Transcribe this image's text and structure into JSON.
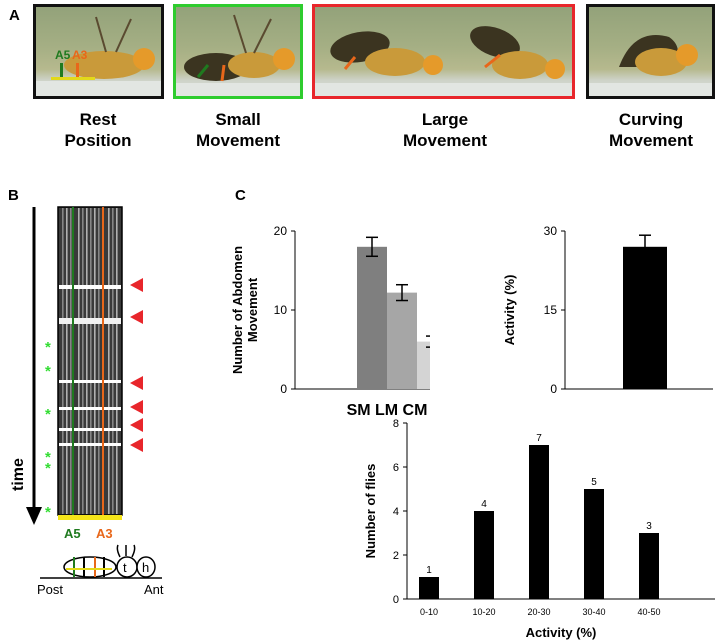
{
  "panels": {
    "a": "A",
    "b": "B",
    "c": "C"
  },
  "photo_labels": {
    "a5": "A5",
    "a3": "A3"
  },
  "captions": [
    {
      "line1": "Rest",
      "line2": "Position"
    },
    {
      "line1": "Small",
      "line2": "Movement"
    },
    {
      "line1": "Large",
      "line2": "Movement"
    },
    {
      "line1": "Curving",
      "line2": "Movement"
    }
  ],
  "colors": {
    "small": "#2ecc2e",
    "large": "#e8262b",
    "curving": "#000000",
    "a5": "#1f7a1f",
    "a3": "#e8671a",
    "arrow": "#e8262b",
    "star": "#33dd33"
  },
  "kymograph": {
    "time_label": "time",
    "a5_label": "A5",
    "a3_label": "A3",
    "post_label": "Post",
    "ant_label": "Ant",
    "t_label": "t",
    "h_label": "h",
    "star": "*"
  },
  "chart_data": [
    {
      "type": "bar",
      "categories": [
        "SM",
        "LM",
        "CM"
      ],
      "values": [
        18,
        12.2,
        6
      ],
      "errors": [
        1.2,
        1.0,
        0.7
      ],
      "colors": [
        "#7f7f7f",
        "#a6a6a6",
        "#d4d4d4"
      ],
      "ylabel": "Number of Abdomen Movement",
      "ylim": [
        0,
        20
      ],
      "yticks": [
        0,
        10,
        20
      ],
      "category_label": "SM LM CM"
    },
    {
      "type": "bar",
      "categories": [
        ""
      ],
      "values": [
        27
      ],
      "errors": [
        2.2
      ],
      "ylabel": "Activity (%)",
      "ylim": [
        0,
        30
      ],
      "yticks": [
        0,
        15,
        30
      ]
    },
    {
      "type": "bar",
      "categories": [
        "0-10",
        "10-20",
        "20-30",
        "30-40",
        "40-50"
      ],
      "values": [
        1,
        4,
        7,
        5,
        3
      ],
      "data_labels": [
        "1",
        "4",
        "7",
        "5",
        "3"
      ],
      "ylabel": "Number of flies",
      "xlabel": "Activity (%)",
      "ylim": [
        0,
        8
      ],
      "yticks": [
        0,
        2,
        4,
        6,
        8
      ]
    }
  ]
}
